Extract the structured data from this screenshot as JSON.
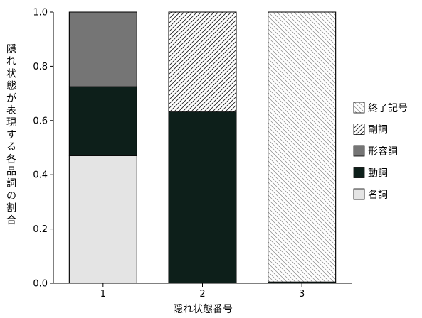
{
  "chart_data": {
    "type": "bar",
    "stacked": true,
    "categories": [
      "1",
      "2",
      "3"
    ],
    "xlabel": "隠れ状態番号",
    "ylabel": "隠れ状態が表現する各品詞の割合",
    "ylim": [
      0,
      1.0
    ],
    "yticks": [
      "0.0",
      "0.2",
      "0.4",
      "0.6",
      "0.8",
      "1.0"
    ],
    "legend_position": "right",
    "series": [
      {
        "name": "名詞",
        "values": [
          0.47,
          0.0,
          0.0
        ],
        "color": "#e4e4e4",
        "pattern": "solid"
      },
      {
        "name": "動詞",
        "values": [
          0.255,
          0.632,
          0.005
        ],
        "color": "#0d1f1a",
        "pattern": "solid"
      },
      {
        "name": "形容詞",
        "values": [
          0.275,
          0.0,
          0.0
        ],
        "color": "#757575",
        "pattern": "solid"
      },
      {
        "name": "副詞",
        "values": [
          0.0,
          0.368,
          0.0
        ],
        "color": "#ffffff",
        "pattern": "hatch-forward"
      },
      {
        "name": "終了記号",
        "values": [
          0.0,
          0.0,
          0.995
        ],
        "color": "#ffffff",
        "pattern": "hatch-back"
      }
    ],
    "legend_order": [
      "終了記号",
      "副詞",
      "形容詞",
      "動詞",
      "名詞"
    ]
  }
}
